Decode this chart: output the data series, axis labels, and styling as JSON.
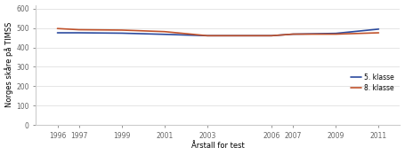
{
  "title": "",
  "xlabel": "Årstall for test",
  "ylabel": "Norges skåre på TIMSS",
  "years_5": [
    1996,
    1997,
    1999,
    2001,
    2003,
    2006,
    2007,
    2009,
    2011
  ],
  "scores_5": [
    476,
    476,
    474,
    468,
    461,
    461,
    469,
    473,
    495
  ],
  "years_8": [
    1996,
    1997,
    1999,
    2001,
    2003,
    2006,
    2007,
    2009,
    2011
  ],
  "scores_8": [
    498,
    492,
    490,
    482,
    461,
    461,
    469,
    469,
    476
  ],
  "color_5": "#2b4a9e",
  "color_8": "#c0522b",
  "ylim": [
    0,
    620
  ],
  "yticks": [
    0,
    100,
    200,
    300,
    400,
    500,
    600
  ],
  "xtick_positions": [
    1996,
    1997,
    1999,
    2001,
    2003,
    2006,
    2007,
    2009,
    2011
  ],
  "xtick_labels": [
    "1996",
    "1997",
    "1999",
    "2001",
    "2003",
    "2006",
    "2007",
    "2009",
    "2011"
  ],
  "legend_5": "5. klasse",
  "legend_8": "8. klasse",
  "bg_color": "#ffffff",
  "grid_color": "#e0e0e0",
  "line_width": 1.2,
  "tick_fontsize": 5.5,
  "label_fontsize": 6.0,
  "legend_fontsize": 5.5
}
